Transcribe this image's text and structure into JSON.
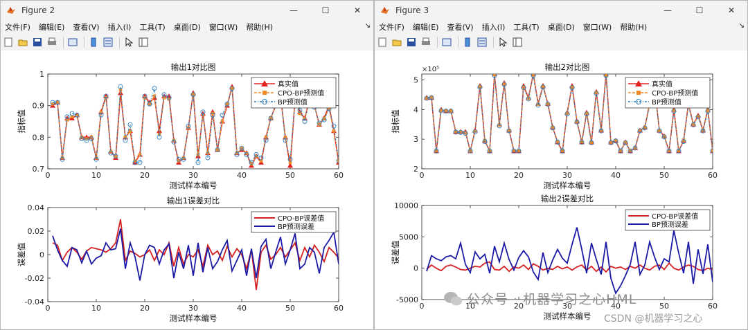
{
  "windows": [
    {
      "id": "win2",
      "title": "Figure 2",
      "menus": [
        "文件(F)",
        "编辑(E)",
        "查看(V)",
        "插入(I)",
        "工具(T)",
        "桌面(D)",
        "窗口(W)",
        "帮助(H)"
      ],
      "top_plot": {
        "title": "输出1对比图",
        "ylabel": "指标值",
        "xlabel": "测试样本编号",
        "xlim": [
          0,
          60
        ],
        "ylim": [
          0.7,
          1
        ],
        "xticks": [
          "0",
          "10",
          "20",
          "30",
          "40",
          "50",
          "60"
        ],
        "yticks": [
          "0.7",
          "0.8",
          "0.9",
          "1"
        ],
        "legend": [
          "真实值",
          "CPO-BP预测值",
          "BP预测值"
        ],
        "series": {
          "true": [
            0.9,
            0.91,
            0.735,
            0.86,
            0.86,
            0.87,
            0.8,
            0.8,
            0.8,
            0.735,
            0.88,
            0.93,
            0.755,
            0.735,
            0.94,
            0.8,
            0.82,
            0.72,
            0.745,
            0.93,
            0.91,
            0.925,
            0.82,
            0.93,
            0.93,
            0.79,
            0.72,
            0.735,
            0.83,
            0.94,
            0.74,
            0.875,
            0.75,
            0.88,
            0.76,
            0.85,
            0.9,
            0.96,
            0.75,
            0.76,
            0.75,
            0.71,
            0.74,
            0.72,
            0.8,
            0.86,
            0.9,
            0.93,
            0.8,
            0.71,
            0.92,
            0.88,
            0.86,
            0.92,
            0.9,
            0.84,
            0.86,
            0.9,
            0.82,
            0.72
          ],
          "cpo": [
            0.905,
            0.91,
            0.735,
            0.855,
            0.865,
            0.868,
            0.8,
            0.795,
            0.8,
            0.735,
            0.88,
            0.925,
            0.755,
            0.74,
            0.95,
            0.8,
            0.82,
            0.725,
            0.745,
            0.925,
            0.905,
            0.93,
            0.81,
            0.925,
            0.92,
            0.79,
            0.725,
            0.735,
            0.83,
            0.935,
            0.745,
            0.87,
            0.75,
            0.875,
            0.76,
            0.85,
            0.905,
            0.955,
            0.75,
            0.765,
            0.75,
            0.715,
            0.74,
            0.725,
            0.8,
            0.86,
            0.9,
            0.925,
            0.8,
            0.72,
            0.92,
            0.875,
            0.86,
            0.915,
            0.9,
            0.84,
            0.86,
            0.89,
            0.82,
            0.725
          ],
          "bp": [
            0.91,
            0.91,
            0.73,
            0.865,
            0.875,
            0.87,
            0.795,
            0.79,
            0.795,
            0.73,
            0.87,
            0.93,
            0.75,
            0.74,
            0.96,
            0.79,
            0.84,
            0.72,
            0.72,
            0.93,
            0.905,
            0.955,
            0.8,
            0.935,
            0.925,
            0.785,
            0.73,
            0.73,
            0.835,
            0.935,
            0.72,
            0.88,
            0.735,
            0.87,
            0.76,
            0.87,
            0.905,
            0.955,
            0.745,
            0.765,
            0.745,
            0.72,
            0.745,
            0.735,
            0.79,
            0.86,
            0.905,
            0.935,
            0.79,
            0.73,
            0.915,
            0.885,
            0.85,
            0.92,
            0.895,
            0.845,
            0.855,
            0.89,
            0.835,
            0.725
          ]
        }
      },
      "bottom_plot": {
        "title": "输出1误差对比",
        "ylabel": "误差值",
        "xlabel": "测试样本编号",
        "xlim": [
          0,
          60
        ],
        "ylim": [
          -0.04,
          0.04
        ],
        "xticks": [
          "0",
          "10",
          "20",
          "30",
          "40",
          "50",
          "60"
        ],
        "yticks": [
          "-0.04",
          "-0.02",
          "0",
          "0.02",
          "0.04"
        ],
        "legend": [
          "CPO-BP误差值",
          "BP预测误差"
        ],
        "series": {
          "cpo": [
            0.01,
            0.008,
            -0.005,
            0.002,
            0.006,
            0.002,
            -0.004,
            0.003,
            0.006,
            0.005,
            0.004,
            0.002,
            0.005,
            0.01,
            0.03,
            -0.005,
            0.003,
            0.001,
            -0.002,
            0.0,
            0.004,
            -0.005,
            0.004,
            0.0,
            0.01,
            -0.01,
            0.006,
            -0.008,
            0.0,
            -0.002,
            0.004,
            -0.01,
            0.008,
            0.0,
            0.003,
            -0.005,
            0.007,
            -0.002,
            0.005,
            0.0,
            -0.012,
            0.004,
            -0.03,
            0.002,
            0.008,
            -0.004,
            0.0,
            0.006,
            -0.002,
            0.004,
            0.01,
            -0.005,
            0.006,
            -0.002,
            0.008,
            0.002,
            -0.006,
            0.006,
            0.002,
            -0.003
          ],
          "bp": [
            0.016,
            0.004,
            -0.005,
            -0.01,
            0.006,
            0.004,
            -0.007,
            0.003,
            -0.008,
            -0.003,
            -0.001,
            0.01,
            0.004,
            0.005,
            0.022,
            -0.012,
            0.01,
            -0.002,
            -0.022,
            0.0,
            0.008,
            0.006,
            -0.008,
            0.004,
            0.009,
            -0.02,
            0.002,
            -0.012,
            0.008,
            -0.018,
            0.01,
            -0.015,
            0.006,
            -0.012,
            -0.006,
            0.004,
            0.012,
            -0.014,
            -0.005,
            0.004,
            -0.018,
            0.005,
            -0.02,
            0.007,
            0.013,
            -0.012,
            0.002,
            0.015,
            -0.008,
            0.004,
            0.018,
            -0.012,
            -0.008,
            0.006,
            0.002,
            -0.016,
            0.006,
            0.012,
            0.019,
            -0.008
          ]
        }
      }
    },
    {
      "id": "win3",
      "title": "Figure 3",
      "menus": [
        "文件(F)",
        "编辑(E)",
        "查看(V)",
        "插入(I)",
        "工具(T)",
        "桌面(D)",
        "窗口(W)",
        "帮助(H)"
      ],
      "top_plot": {
        "title": "输出2对比图",
        "ylabel": "指标值",
        "xlabel": "测试样本编号",
        "xlim": [
          0,
          60
        ],
        "ylim": [
          2,
          5.2
        ],
        "exponent": "×10⁵",
        "xticks": [
          "0",
          "10",
          "20",
          "30",
          "40",
          "50",
          "60"
        ],
        "yticks": [
          "2",
          "3",
          "4",
          "5"
        ],
        "legend": [
          "真实值",
          "CPO-BP预测值",
          "BP预测值"
        ],
        "series": {
          "true": [
            4.4,
            4.4,
            2.6,
            4.0,
            3.95,
            3.95,
            3.25,
            3.25,
            3.25,
            2.6,
            3.3,
            4.8,
            2.95,
            2.6,
            5.2,
            3.5,
            4.9,
            3.3,
            2.6,
            2.6,
            4.8,
            4.4,
            5.2,
            4.2,
            4.8,
            4.2,
            3.4,
            2.9,
            2.6,
            3.9,
            4.8,
            3.6,
            2.9,
            3.9,
            2.9,
            4.6,
            3.3,
            5.2,
            2.9,
            2.95,
            2.6,
            2.9,
            2.6,
            2.7,
            3.3,
            3.4,
            4.2,
            4.8,
            3.3,
            3.1,
            2.6,
            4.0,
            2.6,
            2.95,
            4.2,
            3.5,
            3.8,
            3.3,
            4.0,
            2.6
          ],
          "cpo": [
            4.38,
            4.42,
            2.62,
            3.98,
            3.96,
            3.95,
            3.26,
            3.25,
            3.22,
            2.6,
            3.28,
            4.78,
            2.96,
            2.62,
            5.18,
            3.48,
            4.88,
            3.3,
            2.62,
            2.62,
            4.76,
            4.38,
            5.17,
            4.18,
            4.78,
            4.2,
            3.4,
            2.92,
            2.62,
            3.88,
            4.76,
            3.6,
            2.92,
            3.88,
            2.9,
            4.58,
            3.3,
            5.16,
            2.9,
            2.96,
            2.62,
            2.9,
            2.62,
            2.7,
            3.3,
            3.4,
            4.18,
            4.78,
            3.3,
            3.1,
            2.62,
            3.98,
            2.62,
            2.96,
            4.18,
            3.5,
            3.78,
            3.3,
            3.98,
            2.62
          ],
          "bp": [
            4.38,
            4.4,
            2.6,
            3.96,
            3.95,
            3.95,
            3.24,
            3.23,
            3.2,
            2.6,
            3.25,
            4.76,
            2.92,
            2.6,
            5.15,
            3.45,
            4.85,
            3.28,
            2.6,
            2.6,
            4.74,
            4.36,
            5.15,
            4.15,
            4.76,
            4.18,
            3.38,
            2.9,
            2.6,
            3.85,
            4.74,
            3.58,
            2.9,
            3.85,
            2.88,
            4.55,
            3.28,
            5.15,
            2.88,
            2.94,
            2.6,
            2.88,
            2.6,
            2.7,
            3.28,
            3.38,
            4.15,
            4.75,
            3.28,
            3.08,
            2.6,
            3.95,
            2.6,
            2.92,
            4.15,
            3.48,
            3.75,
            3.28,
            3.95,
            2.6
          ]
        }
      },
      "bottom_plot": {
        "title": "输出2误差对比",
        "ylabel": "误差值",
        "xlabel": "测试样本编号",
        "xlim": [
          0,
          60
        ],
        "ylim": [
          -5000,
          10000
        ],
        "xticks": [
          "0",
          "10",
          "20",
          "30",
          "40",
          "50",
          "60"
        ],
        "yticks": [
          "-5000",
          "0",
          "5000",
          "10000"
        ],
        "legend": [
          "CPO-BP误差值",
          "BP预测误差"
        ],
        "series": {
          "cpo": [
            -200,
            500,
            0,
            -400,
            300,
            500,
            200,
            -200,
            -300,
            0,
            300,
            200,
            800,
            1000,
            -200,
            -300,
            300,
            -500,
            200,
            0,
            500,
            -200,
            700,
            300,
            -300,
            0,
            -200,
            300,
            -100,
            200,
            -300,
            200,
            500,
            -300,
            300,
            -500,
            200,
            -600,
            300,
            0,
            200,
            -200,
            300,
            0,
            500,
            0,
            -300,
            300,
            500,
            -200,
            800,
            0,
            -300,
            200,
            500,
            300,
            -200,
            -400,
            0,
            -200
          ],
          "bp": [
            -500,
            2000,
            1500,
            1200,
            1800,
            2000,
            1500,
            4000,
            600,
            -700,
            2600,
            1500,
            2200,
            -800,
            3500,
            1000,
            4000,
            1400,
            -300,
            1700,
            2800,
            1800,
            -600,
            -1800,
            2500,
            -700,
            1300,
            3000,
            1600,
            800,
            3800,
            6500,
            3000,
            -800,
            4000,
            1400,
            -1000,
            4200,
            -1600,
            -4000,
            -2800,
            -1200,
            600,
            4200,
            -1000,
            500,
            4200,
            1800,
            -200,
            1500,
            1000,
            6000,
            2400,
            -800,
            4200,
            -2500,
            3000,
            -900,
            3800,
            -2200
          ]
        }
      }
    }
  ],
  "watermark": "公众号 · 机器学习之心HML",
  "csdn_watermark": "CSDN @机器学习之心",
  "colors": {
    "true": "#e02020",
    "cpo": "#f28c28",
    "bp": "#2f7fbf",
    "err_cpo": "#d42020",
    "err_bp": "#1a1aa6"
  }
}
